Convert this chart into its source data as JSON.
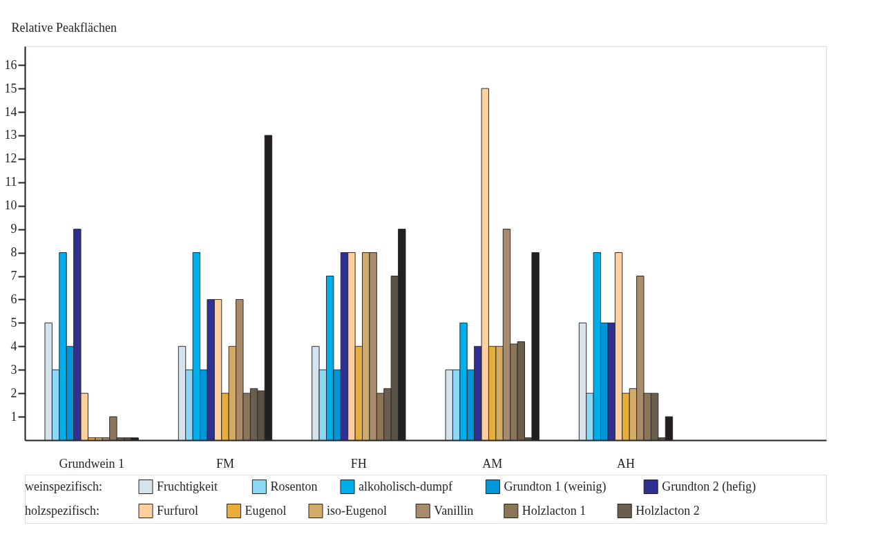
{
  "chart_data": {
    "type": "bar",
    "ylabel": "Relative Peakflächen",
    "categories": [
      "Grundwein 1",
      "FM",
      "FH",
      "AM",
      "AH"
    ],
    "series": [
      {
        "name": "Fruchtigkeit",
        "color": "#d4e3ec",
        "values": [
          5,
          4,
          4,
          3,
          5
        ]
      },
      {
        "name": "Rosenton",
        "color": "#8dd7f6",
        "values": [
          3,
          3,
          3,
          3,
          2
        ]
      },
      {
        "name": "alkoholisch-dumpf",
        "color": "#00aeec",
        "values": [
          8,
          8,
          7,
          5,
          8
        ]
      },
      {
        "name": "Grundton 1 (weinig)",
        "color": "#0096d8",
        "values": [
          4,
          3,
          3,
          3,
          5
        ]
      },
      {
        "name": "Grundton 2 (hefig)",
        "color": "#2e3192",
        "values": [
          9,
          6,
          8,
          4,
          5
        ]
      },
      {
        "name": "Furfurol",
        "color": "#fdd09e",
        "values": [
          2,
          6,
          8,
          15,
          8
        ]
      },
      {
        "name": "Eugenol",
        "color": "#e8ae3c",
        "values": [
          0.1,
          2,
          4,
          4,
          2
        ]
      },
      {
        "name": "iso-Eugenol",
        "color": "#d2ab68",
        "values": [
          0.1,
          4,
          8,
          4,
          2.2
        ]
      },
      {
        "name": "Vanillin",
        "color": "#a88b6a",
        "values": [
          0.1,
          6,
          8,
          9,
          7
        ]
      },
      {
        "name": "Holzlacton 1",
        "color": "#8b7558",
        "values": [
          1,
          2,
          2,
          4.1,
          2
        ]
      },
      {
        "name": "Holzlacton 2",
        "color": "#6b5e4c",
        "values": [
          0.1,
          2.2,
          2.2,
          4.2,
          2
        ]
      },
      {
        "color": "#5a5245",
        "values": [
          0.1,
          2.1,
          7,
          0.1,
          0.1
        ]
      },
      {
        "color": "#231f20",
        "values": [
          0.1,
          13,
          9,
          8,
          1
        ]
      }
    ],
    "ylim": [
      0,
      16.8
    ],
    "yticks": [
      1,
      2,
      3,
      4,
      5,
      6,
      7,
      8,
      9,
      10,
      11,
      12,
      13,
      14,
      15,
      16
    ],
    "grid": false,
    "legend": "bottom",
    "annotations": [
      "weinspezifisch:",
      "holzspezifisch:"
    ]
  }
}
